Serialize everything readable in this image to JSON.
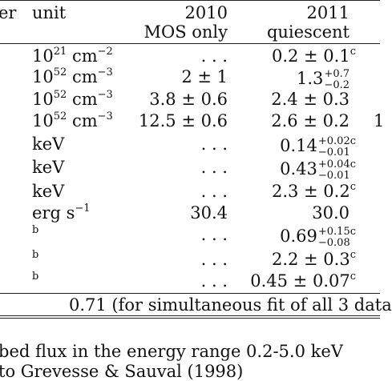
{
  "header": {
    "col0": "er",
    "col1": "unit",
    "col2_line1": "2010",
    "col2_line2": "MOS only",
    "col3_line1": "2011",
    "col3_line2": "quiescent"
  },
  "rows": [
    {
      "param": "",
      "unit_base": "10",
      "unit_exp": "21",
      "unit_rest": " cm",
      "unit_exp2": "−2",
      "v2010": ". . .",
      "v2011": "0.2 ± 0.1",
      "v2011_sup": "c",
      "extra": ""
    },
    {
      "param": "",
      "unit_base": "10",
      "unit_exp": "52",
      "unit_rest": " cm",
      "unit_exp2": "−3",
      "v2010": "2 ± 1",
      "v2011": "1.3",
      "v2011_plus": "+0.7",
      "v2011_minus": "−0.2",
      "extra": ""
    },
    {
      "param": "",
      "unit_base": "10",
      "unit_exp": "52",
      "unit_rest": " cm",
      "unit_exp2": "−3",
      "v2010": "3.8 ± 0.6",
      "v2011": "2.4 ± 0.3",
      "extra": ""
    },
    {
      "param": "",
      "unit_base": "10",
      "unit_exp": "52",
      "unit_rest": " cm",
      "unit_exp2": "−3",
      "v2010": "12.5 ± 0.6",
      "v2011": "2.6 ± 0.2",
      "extra": "1"
    },
    {
      "param": "",
      "unit": "keV",
      "v2010": ". . .",
      "v2011": "0.14",
      "v2011_plus": "+0.02",
      "v2011_minus": "−0.01",
      "v2011_sup": "c",
      "extra": ""
    },
    {
      "param": "",
      "unit": "keV",
      "v2010": ". . .",
      "v2011": "0.43",
      "v2011_plus": "+0.04",
      "v2011_minus": "−0.01",
      "v2011_sup": "c",
      "extra": ""
    },
    {
      "param": "",
      "unit": "keV",
      "v2010": ". . .",
      "v2011": "2.3 ± 0.2",
      "v2011_sup": "c",
      "extra": ""
    },
    {
      "param": "",
      "unit_base": "erg s",
      "unit_exp": "−1",
      "v2010": "30.4",
      "v2011": "30.0",
      "extra": ""
    },
    {
      "param": "",
      "unit_sup_only": "b",
      "v2010": ". . .",
      "v2011": "0.69",
      "v2011_plus": "+0.15",
      "v2011_minus": "−0.08",
      "v2011_sup": "c",
      "extra": ""
    },
    {
      "param": "",
      "unit_sup_only": "b",
      "v2010": ". . .",
      "v2011": "2.2 ± 0.3",
      "v2011_sup": "c",
      "extra": ""
    },
    {
      "param": "",
      "unit_sup_only": "b",
      "v2010": ". . .",
      "v2011": "0.45 ± 0.07",
      "v2011_sup": "c",
      "extra": ""
    }
  ],
  "footer_row": "0.71 (for simultaneous fit of all 3 data",
  "notes": [
    "bed flux in the energy range 0.2-5.0 keV",
    "to Grevesse & Sauval (1998)"
  ]
}
